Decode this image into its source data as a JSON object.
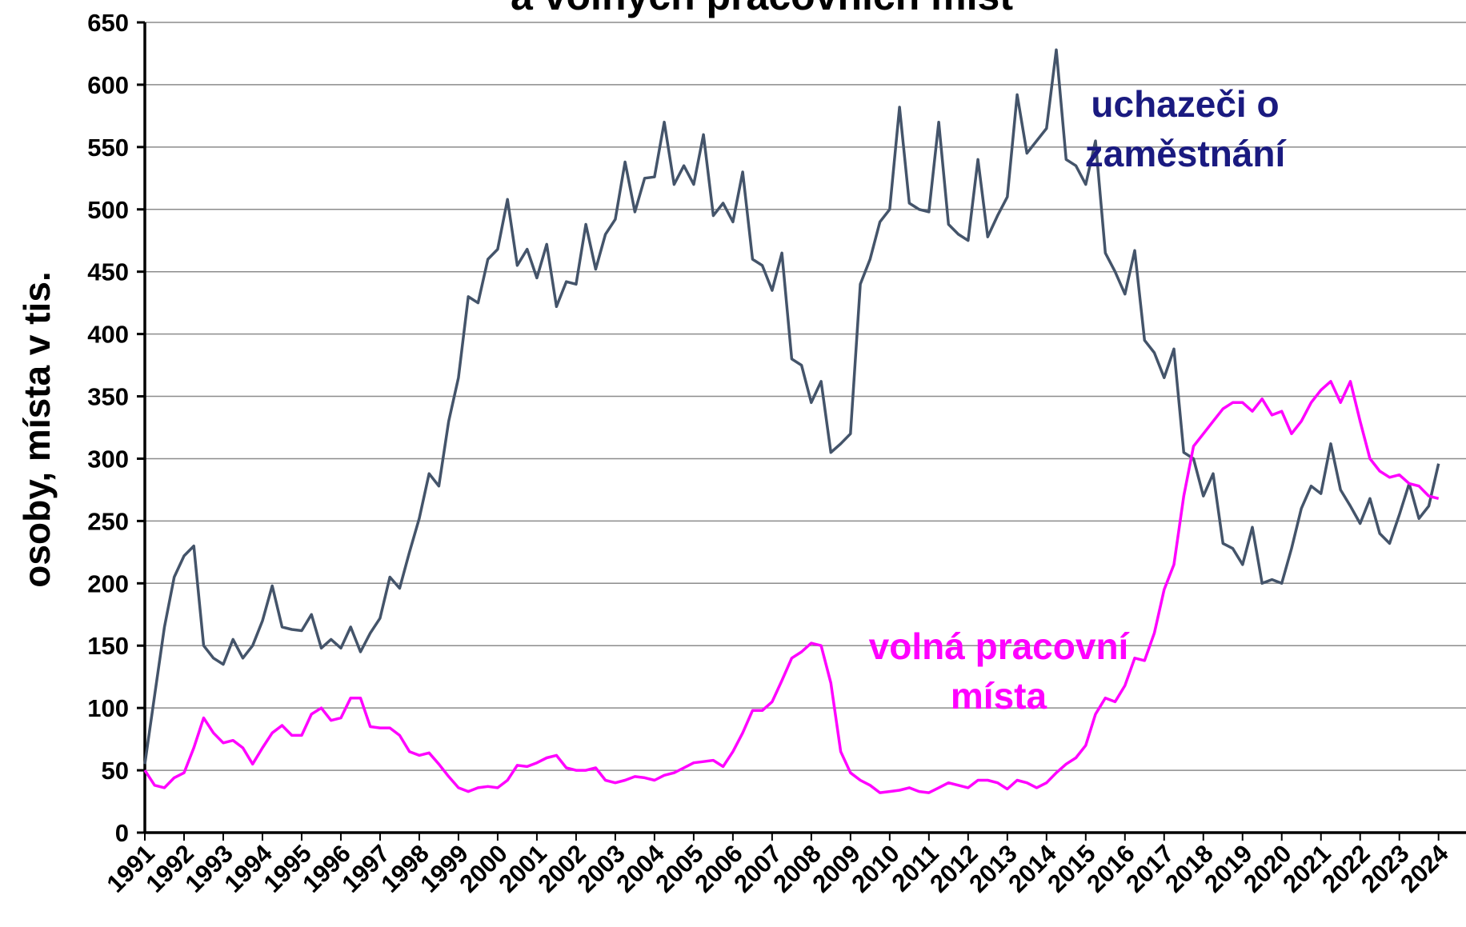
{
  "chart_data": {
    "type": "line",
    "title": "a volných pracovních míst",
    "y_label": "osoby, místa v tis.",
    "x": [
      1991,
      1991.25,
      1991.5,
      1991.75,
      1992,
      1992.25,
      1992.5,
      1992.75,
      1993,
      1993.25,
      1993.5,
      1993.75,
      1994,
      1994.25,
      1994.5,
      1994.75,
      1995,
      1995.25,
      1995.5,
      1995.75,
      1996,
      1996.25,
      1996.5,
      1996.75,
      1997,
      1997.25,
      1997.5,
      1997.75,
      1998,
      1998.25,
      1998.5,
      1998.75,
      1999,
      1999.25,
      1999.5,
      1999.75,
      2000,
      2000.25,
      2000.5,
      2000.75,
      2001,
      2001.25,
      2001.5,
      2001.75,
      2002,
      2002.25,
      2002.5,
      2002.75,
      2003,
      2003.25,
      2003.5,
      2003.75,
      2004,
      2004.25,
      2004.5,
      2004.75,
      2005,
      2005.25,
      2005.5,
      2005.75,
      2006,
      2006.25,
      2006.5,
      2006.75,
      2007,
      2007.25,
      2007.5,
      2007.75,
      2008,
      2008.25,
      2008.5,
      2008.75,
      2009,
      2009.25,
      2009.5,
      2009.75,
      2010,
      2010.25,
      2010.5,
      2010.75,
      2011,
      2011.25,
      2011.5,
      2011.75,
      2012,
      2012.25,
      2012.5,
      2012.75,
      2013,
      2013.25,
      2013.5,
      2013.75,
      2014,
      2014.25,
      2014.5,
      2014.75,
      2015,
      2015.25,
      2015.5,
      2015.75,
      2016,
      2016.25,
      2016.5,
      2016.75,
      2017,
      2017.25,
      2017.5,
      2017.75,
      2018,
      2018.25,
      2018.5,
      2018.75,
      2019,
      2019.25,
      2019.5,
      2019.75,
      2020,
      2020.25,
      2020.5,
      2020.75,
      2021,
      2021.25,
      2021.5,
      2021.75,
      2022,
      2022.25,
      2022.5,
      2022.75,
      2023,
      2023.25,
      2023.5,
      2023.75,
      2024
    ],
    "series": [
      {
        "name_lines": [
          "uchazeči o",
          "zaměstnání"
        ],
        "color": "#44546a",
        "label_color": "#1a1a80",
        "values": [
          55,
          110,
          165,
          205,
          222,
          230,
          150,
          140,
          135,
          155,
          140,
          150,
          170,
          198,
          165,
          163,
          162,
          175,
          148,
          155,
          148,
          165,
          145,
          160,
          172,
          205,
          196,
          225,
          252,
          288,
          278,
          330,
          365,
          430,
          425,
          460,
          468,
          508,
          455,
          468,
          445,
          472,
          422,
          442,
          440,
          488,
          452,
          480,
          492,
          538,
          498,
          525,
          526,
          570,
          520,
          535,
          520,
          560,
          495,
          505,
          490,
          530,
          460,
          455,
          435,
          465,
          380,
          375,
          345,
          362,
          305,
          312,
          320,
          440,
          460,
          490,
          500,
          582,
          505,
          500,
          498,
          570,
          488,
          480,
          475,
          540,
          478,
          495,
          510,
          592,
          545,
          555,
          565,
          628,
          540,
          535,
          520,
          555,
          465,
          450,
          432,
          467,
          395,
          385,
          365,
          388,
          305,
          300,
          270,
          288,
          232,
          228,
          215,
          245,
          200,
          203,
          200,
          228,
          260,
          278,
          272,
          312,
          275,
          262,
          248,
          268,
          240,
          232,
          255,
          280,
          252,
          262,
          296
        ]
      },
      {
        "name_lines": [
          "volná pracovní",
          "místa"
        ],
        "color": "#ff00ff",
        "label_color": "#ff00ff",
        "values": [
          50,
          38,
          36,
          44,
          48,
          68,
          92,
          80,
          72,
          74,
          68,
          55,
          68,
          80,
          86,
          78,
          78,
          95,
          100,
          90,
          92,
          108,
          108,
          85,
          84,
          84,
          78,
          65,
          62,
          64,
          55,
          45,
          36,
          33,
          36,
          37,
          36,
          42,
          54,
          53,
          56,
          60,
          62,
          52,
          50,
          50,
          52,
          42,
          40,
          42,
          45,
          44,
          42,
          46,
          48,
          52,
          56,
          57,
          58,
          53,
          65,
          80,
          98,
          98,
          105,
          122,
          140,
          145,
          152,
          150,
          120,
          65,
          48,
          42,
          38,
          32,
          33,
          34,
          36,
          33,
          32,
          36,
          40,
          38,
          36,
          42,
          42,
          40,
          35,
          42,
          40,
          36,
          40,
          48,
          55,
          60,
          70,
          95,
          108,
          105,
          118,
          140,
          138,
          160,
          195,
          215,
          270,
          310,
          320,
          330,
          340,
          345,
          345,
          338,
          348,
          335,
          338,
          320,
          330,
          345,
          355,
          362,
          345,
          362,
          330,
          300,
          290,
          285,
          287,
          280,
          278,
          270,
          268
        ]
      }
    ],
    "xlim": [
      1991,
      2024.7
    ],
    "xticks": [
      1991,
      1992,
      1993,
      1994,
      1995,
      1996,
      1997,
      1998,
      1999,
      2000,
      2001,
      2002,
      2003,
      2004,
      2005,
      2006,
      2007,
      2008,
      2009,
      2010,
      2011,
      2012,
      2013,
      2014,
      2015,
      2016,
      2017,
      2018,
      2019,
      2020,
      2021,
      2022,
      2023,
      2024
    ],
    "ylim": [
      0,
      650
    ],
    "yticks": [
      0,
      50,
      100,
      150,
      200,
      250,
      300,
      350,
      400,
      450,
      500,
      550,
      600,
      650
    ],
    "grid": true
  }
}
